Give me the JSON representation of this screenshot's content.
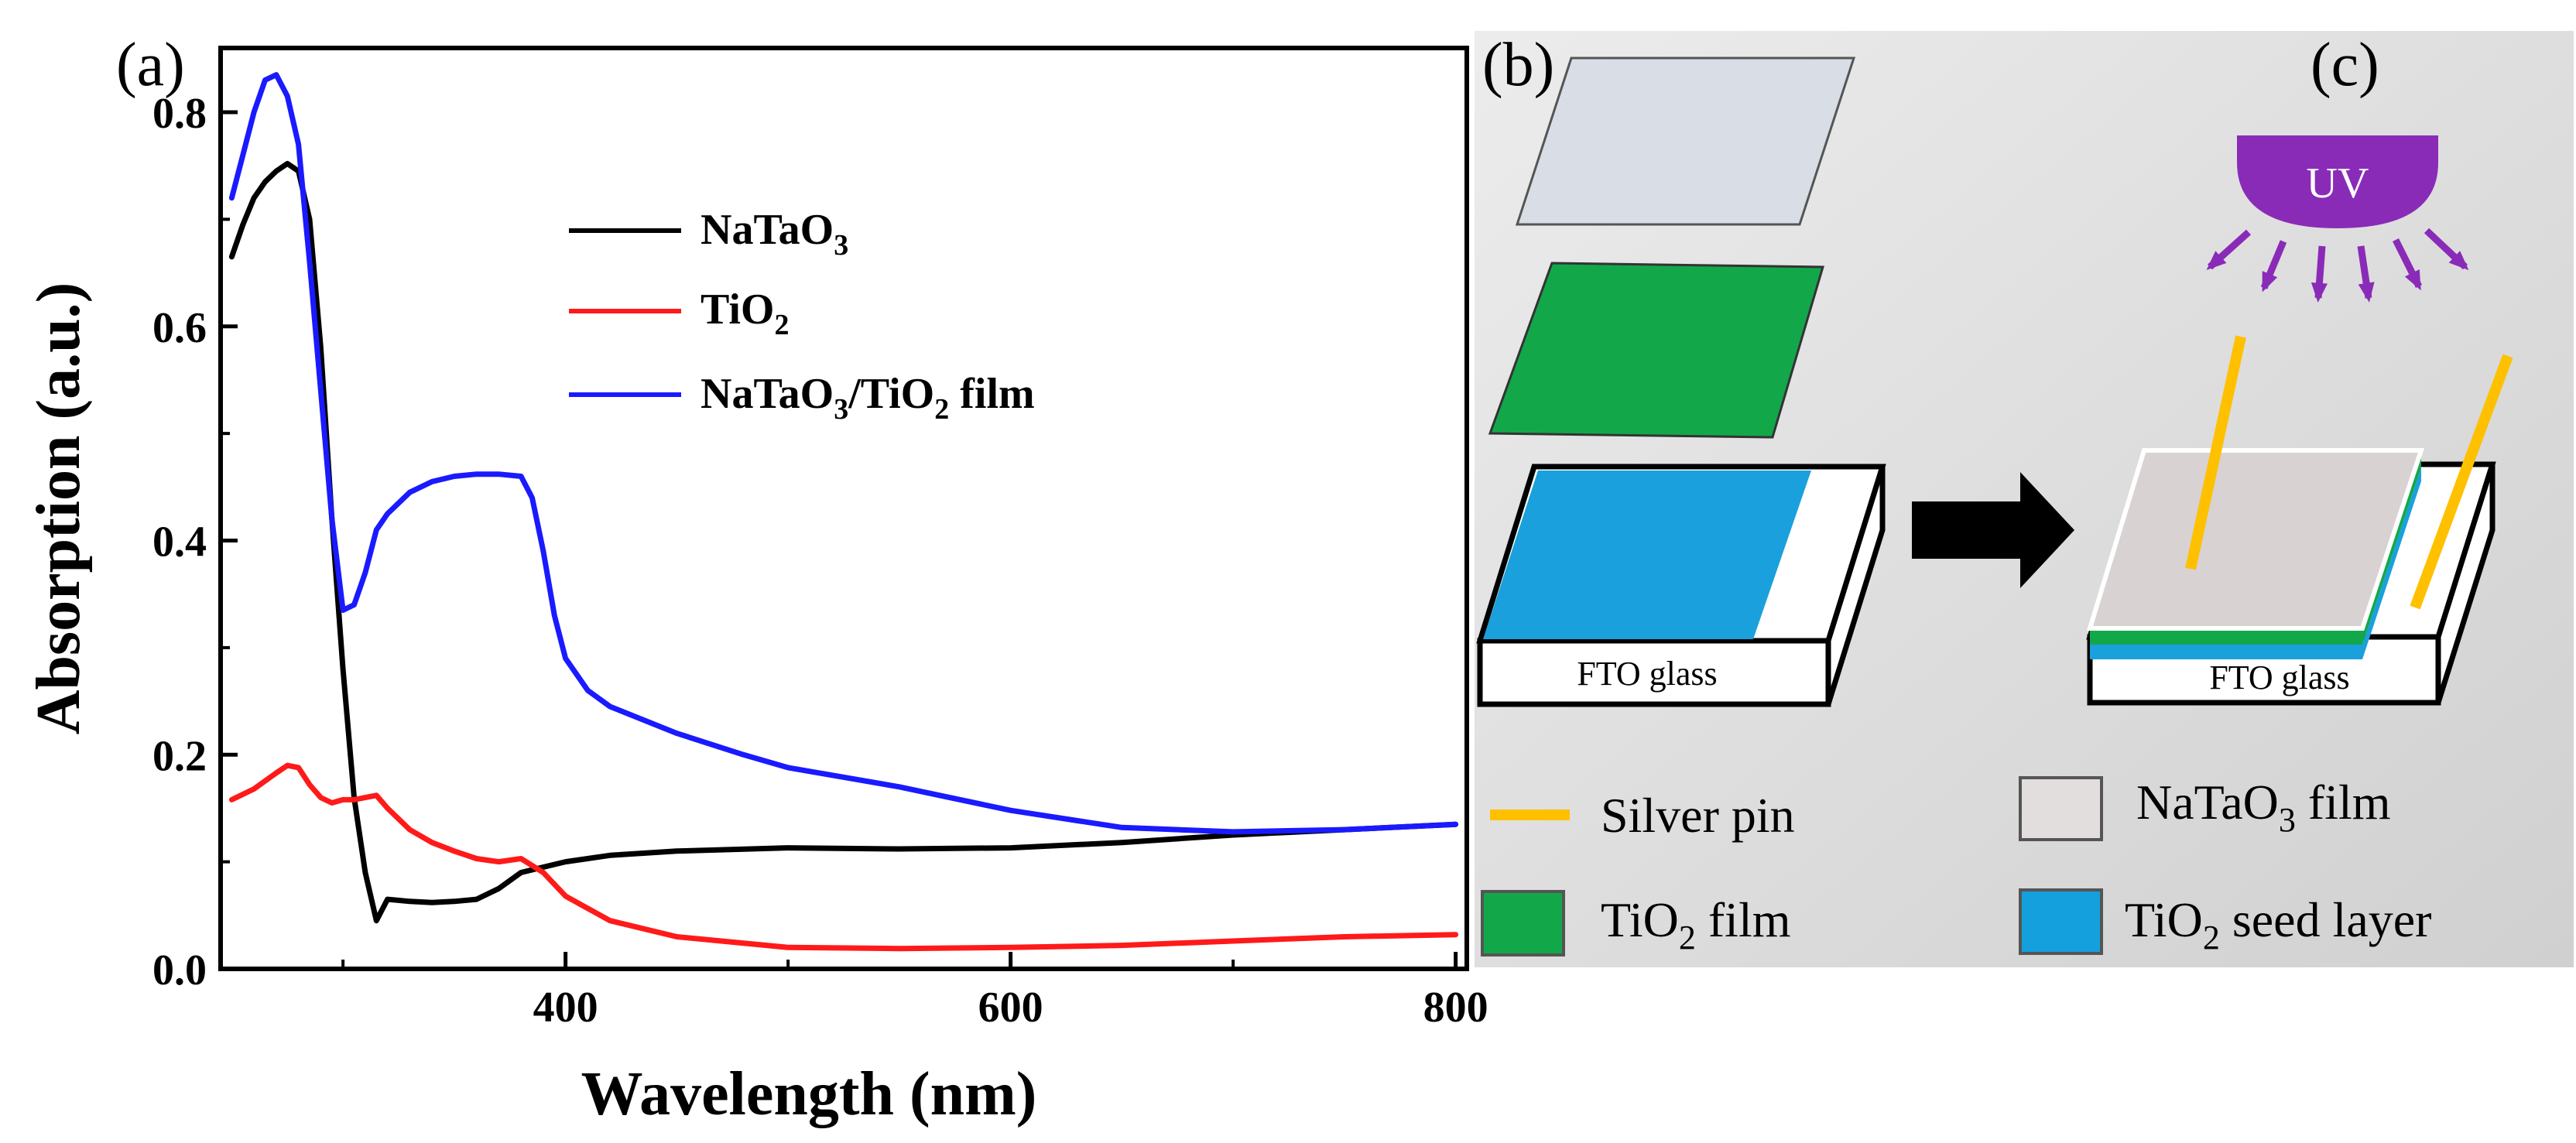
{
  "panels": {
    "a_label": "(a)",
    "b_label": "(b)",
    "c_label": "(c)"
  },
  "chart_data": {
    "type": "line",
    "title": "",
    "xlabel": "Wavelength (nm)",
    "ylabel": "Absorption (a.u.)",
    "xlim": [
      245,
      805
    ],
    "ylim": [
      0.0,
      0.86
    ],
    "xticks": [
      400,
      600,
      800
    ],
    "yticks": [
      0.0,
      0.2,
      0.4,
      0.6,
      0.8
    ],
    "ytick_labels": [
      "0.0",
      "0.2",
      "0.4",
      "0.6",
      "0.8"
    ],
    "grid": false,
    "legend_position": "top-center",
    "series": [
      {
        "name": "NaTaO3",
        "legend_main": "NaTaO",
        "legend_sub": "3",
        "legend_tail": "",
        "color": "#000000",
        "x": [
          250,
          255,
          260,
          265,
          270,
          275,
          280,
          285,
          290,
          295,
          300,
          305,
          310,
          315,
          320,
          330,
          340,
          350,
          360,
          370,
          380,
          390,
          400,
          420,
          450,
          500,
          550,
          600,
          650,
          700,
          750,
          800
        ],
        "y": [
          0.665,
          0.695,
          0.72,
          0.735,
          0.745,
          0.752,
          0.745,
          0.7,
          0.58,
          0.42,
          0.28,
          0.16,
          0.09,
          0.045,
          0.065,
          0.063,
          0.062,
          0.063,
          0.065,
          0.075,
          0.09,
          0.095,
          0.1,
          0.106,
          0.11,
          0.113,
          0.112,
          0.113,
          0.118,
          0.125,
          0.13,
          0.135
        ]
      },
      {
        "name": "TiO2",
        "legend_main": "TiO",
        "legend_sub": "2",
        "legend_tail": "",
        "color": "#ff1a1a",
        "x": [
          250,
          260,
          270,
          275,
          280,
          285,
          290,
          295,
          300,
          305,
          310,
          315,
          320,
          330,
          340,
          350,
          360,
          370,
          380,
          390,
          400,
          420,
          450,
          500,
          550,
          600,
          650,
          700,
          750,
          800
        ],
        "y": [
          0.158,
          0.168,
          0.183,
          0.19,
          0.188,
          0.172,
          0.16,
          0.155,
          0.158,
          0.158,
          0.16,
          0.162,
          0.15,
          0.13,
          0.118,
          0.11,
          0.103,
          0.1,
          0.103,
          0.09,
          0.068,
          0.045,
          0.03,
          0.02,
          0.019,
          0.02,
          0.022,
          0.026,
          0.03,
          0.032
        ]
      },
      {
        "name": "NaTaO3/TiO2 film",
        "legend_main": "NaTaO",
        "legend_sub": "3",
        "legend_tail": "/TiO",
        "legend_sub2": "2",
        "legend_tail2": " film",
        "color": "#1a1aff",
        "x": [
          250,
          255,
          260,
          265,
          270,
          275,
          280,
          285,
          290,
          295,
          300,
          305,
          310,
          315,
          320,
          330,
          340,
          350,
          360,
          370,
          380,
          385,
          390,
          395,
          400,
          410,
          420,
          450,
          480,
          500,
          550,
          600,
          650,
          700,
          750,
          800
        ],
        "y": [
          0.72,
          0.76,
          0.8,
          0.83,
          0.835,
          0.815,
          0.77,
          0.66,
          0.54,
          0.42,
          0.335,
          0.34,
          0.37,
          0.41,
          0.425,
          0.445,
          0.455,
          0.46,
          0.462,
          0.462,
          0.46,
          0.44,
          0.39,
          0.33,
          0.29,
          0.26,
          0.245,
          0.22,
          0.2,
          0.188,
          0.17,
          0.148,
          0.132,
          0.128,
          0.13,
          0.135
        ]
      }
    ]
  },
  "schematic": {
    "fto_label_left": "FTO glass",
    "fto_label_right": "FTO glass",
    "uv_label": "UV",
    "legend": [
      {
        "key": "silver-pin",
        "label": "Silver pin",
        "color": "#ffc000"
      },
      {
        "key": "natao3-film",
        "label_main": "NaTaO",
        "label_sub": "3",
        "label_tail": " film",
        "color": "#e3dede"
      },
      {
        "key": "tio2-film",
        "label_main": "TiO",
        "label_sub": "2",
        "label_tail": " film",
        "color": "#12a84a"
      },
      {
        "key": "tio2-seed-layer",
        "label_main": "TiO",
        "label_sub": "2",
        "label_tail": " seed layer",
        "color": "#14a0dc"
      }
    ],
    "colors": {
      "glass_top": "#d9dde6",
      "tio2_green": "#12a84a",
      "seed_blue": "#1aa0dc",
      "uv_purple": "#8a2bb8",
      "arrow": "#000000",
      "pin": "#ffc000"
    }
  }
}
